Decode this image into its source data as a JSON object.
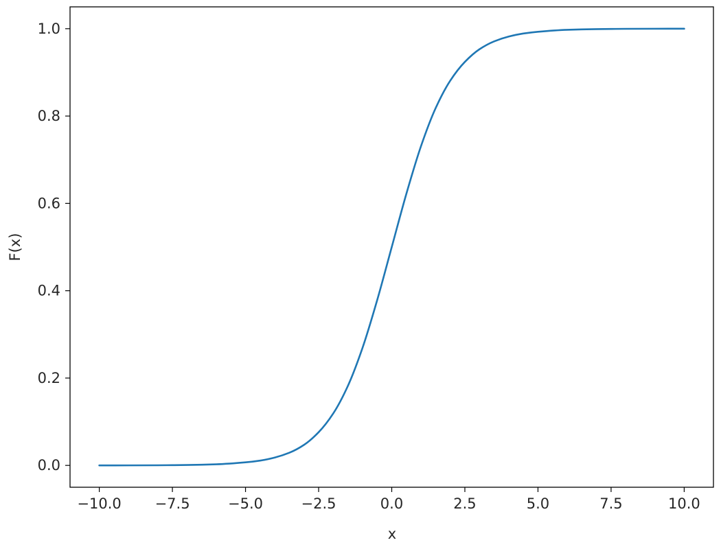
{
  "chart_data": {
    "type": "line",
    "title": "",
    "xlabel": "x",
    "ylabel": "F(x)",
    "xlim": [
      -11.0,
      11.0
    ],
    "ylim": [
      -0.05,
      1.05
    ],
    "xticks": [
      -10.0,
      -7.5,
      -5.0,
      -2.5,
      0.0,
      2.5,
      5.0,
      7.5,
      10.0
    ],
    "xtick_labels": [
      "−10.0",
      "−7.5",
      "−5.0",
      "−2.5",
      "0.0",
      "2.5",
      "5.0",
      "7.5",
      "10.0"
    ],
    "yticks": [
      0.0,
      0.2,
      0.4,
      0.6,
      0.8,
      1.0
    ],
    "ytick_labels": [
      "0.0",
      "0.2",
      "0.4",
      "0.6",
      "0.8",
      "1.0"
    ],
    "grid": false,
    "legend": "none",
    "line_color": "#1f77b4",
    "series": [
      {
        "x": [
          -10.0,
          -9.0,
          -8.0,
          -7.5,
          -7.0,
          -6.0,
          -5.0,
          -4.5,
          -4.0,
          -3.5,
          -3.0,
          -2.5,
          -2.0,
          -1.5,
          -1.0,
          -0.5,
          0.0,
          0.5,
          1.0,
          1.5,
          2.0,
          2.5,
          3.0,
          3.5,
          4.0,
          4.5,
          5.0,
          6.0,
          7.0,
          7.5,
          8.0,
          9.0,
          10.0
        ],
        "y": [
          0.0,
          0.0001,
          0.0003,
          0.0006,
          0.0009,
          0.0025,
          0.007,
          0.011,
          0.018,
          0.029,
          0.047,
          0.076,
          0.119,
          0.182,
          0.269,
          0.378,
          0.5,
          0.622,
          0.731,
          0.818,
          0.881,
          0.924,
          0.953,
          0.971,
          0.982,
          0.989,
          0.993,
          0.9975,
          0.9991,
          0.9994,
          0.9997,
          0.9999,
          1.0
        ]
      }
    ]
  }
}
